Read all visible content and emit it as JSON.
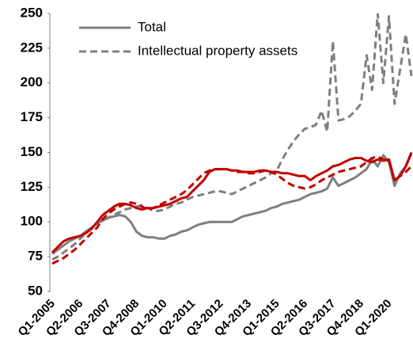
{
  "chart_data": {
    "type": "line",
    "categories": [
      "Q1-2005",
      null,
      null,
      null,
      null,
      "Q2-2006",
      null,
      null,
      null,
      null,
      "Q3-2007",
      null,
      null,
      null,
      null,
      "Q4-2008",
      null,
      null,
      null,
      null,
      "Q1-2010",
      null,
      null,
      null,
      null,
      "Q2-2011",
      null,
      null,
      null,
      null,
      "Q3-2012",
      null,
      null,
      null,
      null,
      "Q4-2013",
      null,
      null,
      null,
      null,
      "Q1-2015",
      null,
      null,
      null,
      null,
      "Q2-2016",
      null,
      null,
      null,
      null,
      "Q3-2017",
      null,
      null,
      null,
      null,
      "Q4-2018",
      null,
      null,
      null,
      null,
      "Q1-2020",
      null,
      null,
      null,
      null
    ],
    "series": [
      {
        "name": "Total",
        "color": "#7f7f7f",
        "dash": false,
        "values": [
          77,
          80,
          83,
          86,
          88,
          90,
          93,
          96,
          99,
          101,
          103,
          104,
          105,
          104,
          100,
          93,
          90,
          89,
          89,
          88,
          88,
          90,
          91,
          93,
          94,
          96,
          98,
          99,
          100,
          100,
          100,
          100,
          100,
          102,
          104,
          105,
          106,
          107,
          108,
          110,
          111,
          113,
          114,
          115,
          116,
          118,
          120,
          121,
          122,
          124,
          132,
          126,
          128,
          130,
          132,
          135,
          138,
          145,
          140,
          148,
          143,
          126,
          135,
          140,
          149
        ]
      },
      {
        "name": "Intellectual property assets",
        "color": "#7f7f7f",
        "dash": true,
        "values": [
          73,
          75,
          78,
          81,
          84,
          88,
          92,
          96,
          99,
          101,
          103,
          105,
          107,
          109,
          110,
          111,
          112,
          110,
          108,
          108,
          109,
          111,
          113,
          114,
          116,
          118,
          119,
          120,
          121,
          122,
          122,
          121,
          120,
          122,
          124,
          126,
          128,
          130,
          132,
          135,
          137,
          145,
          152,
          158,
          163,
          167,
          168,
          170,
          180,
          165,
          230,
          173,
          174,
          176,
          180,
          185,
          220,
          195,
          250,
          200,
          248,
          185,
          210,
          235,
          205
        ]
      },
      {
        "color": "#c00000",
        "dash": false,
        "values": [
          78,
          82,
          86,
          88,
          89,
          90,
          92,
          95,
          100,
          105,
          108,
          111,
          113,
          113,
          112,
          110,
          109,
          110,
          110,
          111,
          112,
          113,
          115,
          117,
          118,
          122,
          126,
          130,
          136,
          138,
          138,
          138,
          137,
          137,
          136,
          136,
          136,
          137,
          137,
          136,
          136,
          135,
          135,
          134,
          133,
          133,
          130,
          133,
          135,
          137,
          140,
          141,
          143,
          145,
          146,
          146,
          144,
          143,
          145,
          144,
          145,
          130,
          133,
          140,
          150
        ]
      },
      {
        "color": "#c00000",
        "dash": true,
        "values": [
          70,
          72,
          74,
          77,
          80,
          84,
          88,
          92,
          96,
          102,
          106,
          109,
          111,
          113,
          114,
          113,
          111,
          109,
          110,
          112,
          114,
          116,
          118,
          120,
          123,
          127,
          131,
          135,
          137,
          138,
          138,
          138,
          137,
          136,
          136,
          135,
          135,
          136,
          137,
          136,
          134,
          131,
          128,
          126,
          125,
          124,
          125,
          127,
          130,
          132,
          134,
          136,
          137,
          138,
          139,
          140,
          143,
          146,
          147,
          145,
          144,
          130,
          133,
          136,
          140
        ]
      }
    ],
    "ylim": [
      50,
      250
    ],
    "yticks": [
      50,
      75,
      100,
      125,
      150,
      175,
      200,
      225,
      250
    ],
    "legend": "top-left"
  }
}
